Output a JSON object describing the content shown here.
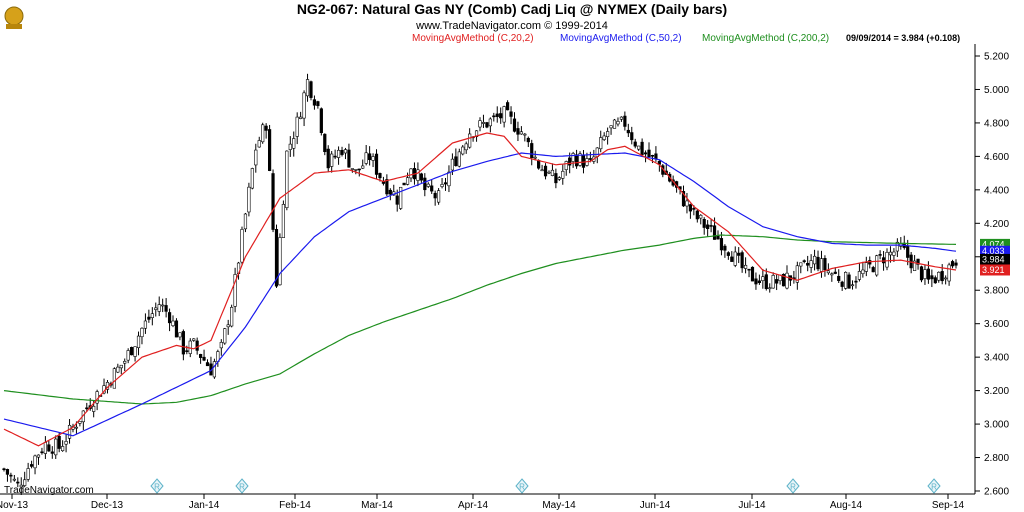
{
  "header": {
    "title": "NG2-067:  Natural Gas NY (Comb) Cadj Liq @ NYMEX  (Daily bars)",
    "subtitle": "www.TradeNavigator.com © 1999-2014",
    "readout": "09/09/2014 = 3.984 (+0.108)"
  },
  "footer": {
    "brand": "TradeNavigator.com"
  },
  "colors": {
    "ma20": "#e02020",
    "ma50": "#1a1aee",
    "ma200": "#1f8f1f",
    "candle": "#000000",
    "r_marker": "#5fb3c9"
  },
  "icons": {
    "logo": "trophy-icon",
    "marker": "r-marker-icon"
  },
  "chart_data": {
    "type": "candlestick",
    "title": "NG2-067:  Natural Gas NY (Comb) Cadj Liq @ NYMEX  (Daily bars)",
    "x_axis_labels": [
      "Nov-13",
      "Dec-13",
      "Jan-14",
      "Feb-14",
      "Mar-14",
      "Apr-14",
      "May-14",
      "Jun-14",
      "Jul-14",
      "Aug-14",
      "Sep-14"
    ],
    "y_ticks": [
      "2.600",
      "2.800",
      "3.000",
      "3.200",
      "3.400",
      "3.600",
      "3.800",
      "4.000",
      "4.200",
      "4.400",
      "4.600",
      "4.800",
      "5.000",
      "5.200"
    ],
    "ylim": [
      2.6,
      5.25
    ],
    "grid": false,
    "series": [
      {
        "name": "MovingAvgMethod (C,20,2)",
        "color": "#e02020",
        "last": "3.921"
      },
      {
        "name": "MovingAvgMethod (C,50,2)",
        "color": "#1a1aee",
        "last": "4.033"
      },
      {
        "name": "MovingAvgMethod (C,200,2)",
        "color": "#1f8f1f",
        "last": "4.074"
      }
    ],
    "last_close": {
      "label": "3.984",
      "value": 3.984
    },
    "ma_anchors": {
      "ma20": [
        [
          0,
          2.97
        ],
        [
          10,
          2.87
        ],
        [
          20,
          2.98
        ],
        [
          30,
          3.22
        ],
        [
          40,
          3.4
        ],
        [
          50,
          3.47
        ],
        [
          55,
          3.45
        ],
        [
          60,
          3.5
        ],
        [
          70,
          4.0
        ],
        [
          80,
          4.35
        ],
        [
          90,
          4.5
        ],
        [
          100,
          4.52
        ],
        [
          110,
          4.45
        ],
        [
          120,
          4.5
        ],
        [
          130,
          4.68
        ],
        [
          140,
          4.74
        ],
        [
          145,
          4.72
        ],
        [
          150,
          4.6
        ],
        [
          160,
          4.55
        ],
        [
          170,
          4.57
        ],
        [
          175,
          4.64
        ],
        [
          180,
          4.66
        ],
        [
          190,
          4.55
        ],
        [
          200,
          4.3
        ],
        [
          210,
          4.15
        ],
        [
          220,
          3.92
        ],
        [
          230,
          3.86
        ],
        [
          240,
          3.93
        ],
        [
          250,
          3.97
        ],
        [
          260,
          3.98
        ],
        [
          270,
          3.94
        ],
        [
          276,
          3.921
        ]
      ],
      "ma50": [
        [
          0,
          3.03
        ],
        [
          20,
          2.93
        ],
        [
          40,
          3.12
        ],
        [
          60,
          3.32
        ],
        [
          70,
          3.58
        ],
        [
          80,
          3.9
        ],
        [
          90,
          4.12
        ],
        [
          100,
          4.27
        ],
        [
          110,
          4.35
        ],
        [
          120,
          4.43
        ],
        [
          130,
          4.51
        ],
        [
          140,
          4.57
        ],
        [
          150,
          4.62
        ],
        [
          160,
          4.6
        ],
        [
          170,
          4.61
        ],
        [
          180,
          4.62
        ],
        [
          190,
          4.58
        ],
        [
          200,
          4.45
        ],
        [
          210,
          4.3
        ],
        [
          220,
          4.18
        ],
        [
          230,
          4.12
        ],
        [
          240,
          4.08
        ],
        [
          250,
          4.07
        ],
        [
          260,
          4.07
        ],
        [
          270,
          4.05
        ],
        [
          276,
          4.033
        ]
      ],
      "ma200": [
        [
          0,
          3.2
        ],
        [
          20,
          3.15
        ],
        [
          40,
          3.12
        ],
        [
          50,
          3.13
        ],
        [
          60,
          3.17
        ],
        [
          70,
          3.24
        ],
        [
          80,
          3.3
        ],
        [
          90,
          3.42
        ],
        [
          100,
          3.53
        ],
        [
          110,
          3.61
        ],
        [
          120,
          3.68
        ],
        [
          130,
          3.75
        ],
        [
          140,
          3.83
        ],
        [
          150,
          3.9
        ],
        [
          160,
          3.96
        ],
        [
          170,
          4.0
        ],
        [
          180,
          4.04
        ],
        [
          190,
          4.07
        ],
        [
          200,
          4.11
        ],
        [
          208,
          4.13
        ],
        [
          220,
          4.12
        ],
        [
          230,
          4.1
        ],
        [
          240,
          4.09
        ],
        [
          250,
          4.085
        ],
        [
          260,
          4.08
        ],
        [
          276,
          4.074
        ]
      ],
      "close": [
        [
          0,
          2.73
        ],
        [
          4,
          2.63
        ],
        [
          8,
          2.78
        ],
        [
          12,
          2.88
        ],
        [
          16,
          2.86
        ],
        [
          20,
          2.98
        ],
        [
          25,
          3.13
        ],
        [
          30,
          3.25
        ],
        [
          35,
          3.38
        ],
        [
          40,
          3.57
        ],
        [
          45,
          3.72
        ],
        [
          48,
          3.65
        ],
        [
          52,
          3.45
        ],
        [
          55,
          3.47
        ],
        [
          60,
          3.33
        ],
        [
          63,
          3.45
        ],
        [
          66,
          3.72
        ],
        [
          70,
          4.25
        ],
        [
          73,
          4.65
        ],
        [
          76,
          4.8
        ],
        [
          79,
          3.85
        ],
        [
          82,
          4.62
        ],
        [
          85,
          4.8
        ],
        [
          88,
          5.05
        ],
        [
          91,
          4.9
        ],
        [
          94,
          4.55
        ],
        [
          98,
          4.65
        ],
        [
          102,
          4.5
        ],
        [
          106,
          4.6
        ],
        [
          110,
          4.45
        ],
        [
          114,
          4.35
        ],
        [
          118,
          4.55
        ],
        [
          122,
          4.4
        ],
        [
          126,
          4.35
        ],
        [
          130,
          4.55
        ],
        [
          135,
          4.75
        ],
        [
          140,
          4.8
        ],
        [
          145,
          4.85
        ],
        [
          150,
          4.75
        ],
        [
          155,
          4.55
        ],
        [
          160,
          4.45
        ],
        [
          165,
          4.6
        ],
        [
          170,
          4.55
        ],
        [
          175,
          4.75
        ],
        [
          180,
          4.8
        ],
        [
          184,
          4.65
        ],
        [
          190,
          4.55
        ],
        [
          195,
          4.4
        ],
        [
          200,
          4.25
        ],
        [
          205,
          4.15
        ],
        [
          210,
          4.05
        ],
        [
          215,
          3.9
        ],
        [
          220,
          3.85
        ],
        [
          225,
          3.85
        ],
        [
          230,
          3.9
        ],
        [
          235,
          3.98
        ],
        [
          240,
          3.9
        ],
        [
          245,
          3.85
        ],
        [
          250,
          3.92
        ],
        [
          255,
          4.0
        ],
        [
          260,
          4.05
        ],
        [
          264,
          3.95
        ],
        [
          268,
          3.85
        ],
        [
          272,
          3.9
        ],
        [
          276,
          3.984
        ]
      ]
    }
  }
}
